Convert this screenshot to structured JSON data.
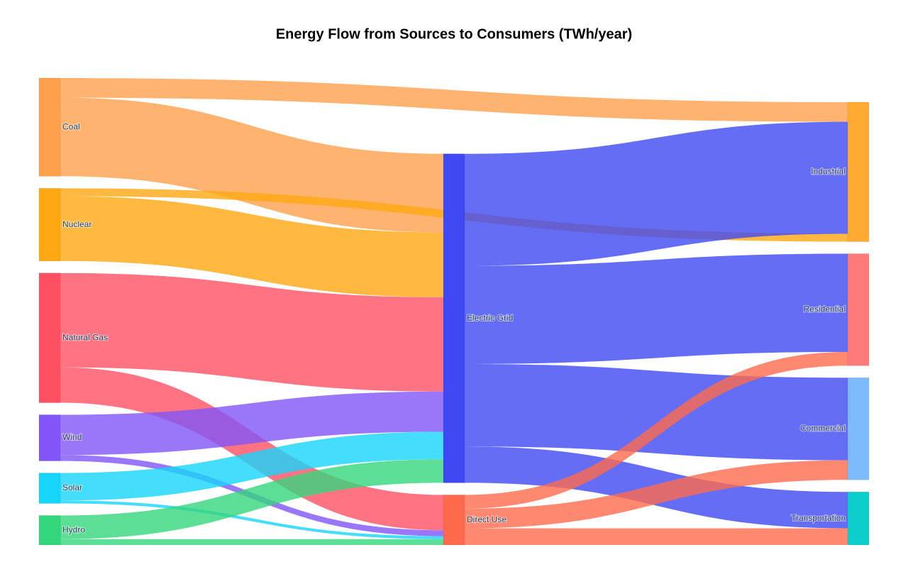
{
  "chart_data": {
    "type": "sankey",
    "title": "Energy Flow from Sources to Consumers (TWh/year)",
    "nodes": [
      {
        "label": "Coal",
        "color": "#ffa04d"
      },
      {
        "label": "Nuclear",
        "color": "#ffa812"
      },
      {
        "label": "Natural Gas",
        "color": "#ff5063"
      },
      {
        "label": "Wind",
        "color": "#8155f8"
      },
      {
        "label": "Solar",
        "color": "#17d4fb"
      },
      {
        "label": "Hydro",
        "color": "#34d67c"
      },
      {
        "label": "Electric Grid",
        "color": "#3f48f2"
      },
      {
        "label": "Direct Use",
        "color": "#ff6a4d"
      },
      {
        "label": "Industrial",
        "color": "#ffaa33"
      },
      {
        "label": "Residential",
        "color": "#ff7b7b"
      },
      {
        "label": "Commercial",
        "color": "#7dbbfd"
      },
      {
        "label": "Transportation",
        "color": "#0ccfcb"
      }
    ],
    "links": [
      {
        "source": 0,
        "target": 8,
        "value": 100
      },
      {
        "source": 0,
        "target": 6,
        "value": 400
      },
      {
        "source": 1,
        "target": 6,
        "value": 330
      },
      {
        "source": 1,
        "target": 8,
        "value": 40
      },
      {
        "source": 2,
        "target": 6,
        "value": 480
      },
      {
        "source": 2,
        "target": 7,
        "value": 180
      },
      {
        "source": 3,
        "target": 6,
        "value": 205
      },
      {
        "source": 3,
        "target": 7,
        "value": 30
      },
      {
        "source": 4,
        "target": 6,
        "value": 140
      },
      {
        "source": 4,
        "target": 7,
        "value": 15
      },
      {
        "source": 5,
        "target": 6,
        "value": 120
      },
      {
        "source": 5,
        "target": 7,
        "value": 30
      },
      {
        "source": 6,
        "target": 8,
        "value": 570
      },
      {
        "source": 6,
        "target": 9,
        "value": 500
      },
      {
        "source": 6,
        "target": 10,
        "value": 420
      },
      {
        "source": 6,
        "target": 11,
        "value": 185
      },
      {
        "source": 7,
        "target": 9,
        "value": 70
      },
      {
        "source": 7,
        "target": 10,
        "value": 100
      },
      {
        "source": 7,
        "target": 11,
        "value": 85
      }
    ]
  }
}
